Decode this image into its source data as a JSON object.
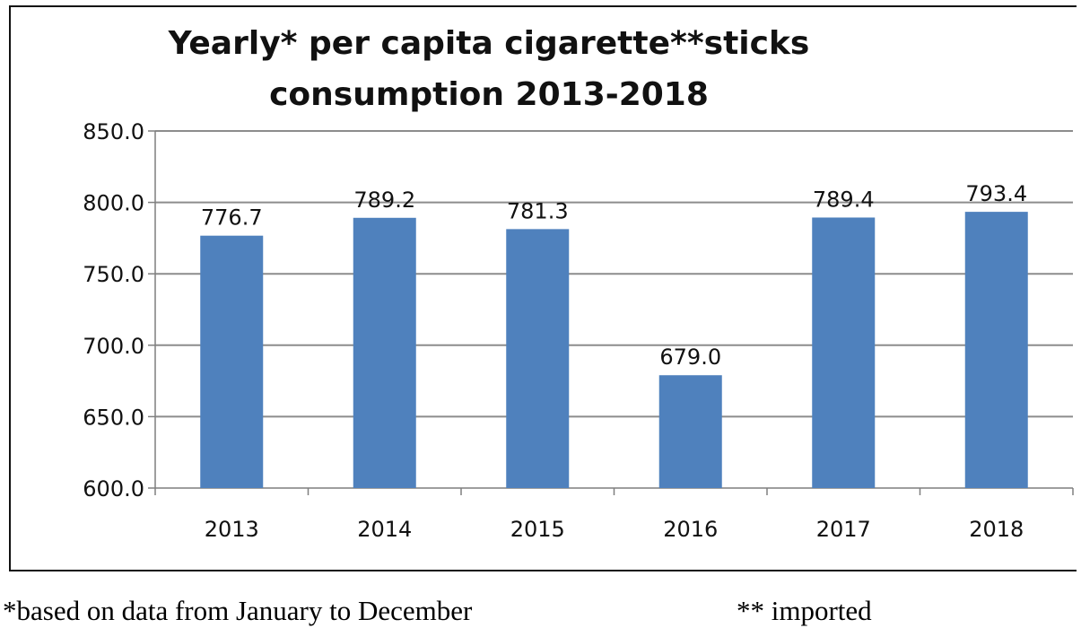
{
  "chart_data": {
    "type": "bar",
    "title": "Yearly* per capita cigarette**sticks consumption 2013-2018",
    "title_lines": [
      "Yearly* per capita cigarette**sticks",
      "consumption 2013-2018"
    ],
    "categories": [
      "2013",
      "2014",
      "2015",
      "2016",
      "2017",
      "2018"
    ],
    "values": [
      776.7,
      789.2,
      781.3,
      679.0,
      789.4,
      793.4
    ],
    "data_labels": [
      "776.7",
      "789.2",
      "781.3",
      "679.0",
      "789.4",
      "793.4"
    ],
    "ylim": [
      600,
      850
    ],
    "yticks": [
      "600.0",
      "650.0",
      "700.0",
      "750.0",
      "800.0",
      "850.0"
    ],
    "xlabel": "",
    "ylabel": "",
    "grid": true,
    "legend": false,
    "bar_color": "#4f81bd",
    "grid_color": "#8c8c8c"
  },
  "footnotes": {
    "left": "*based on data from January to December",
    "right": "** imported"
  }
}
